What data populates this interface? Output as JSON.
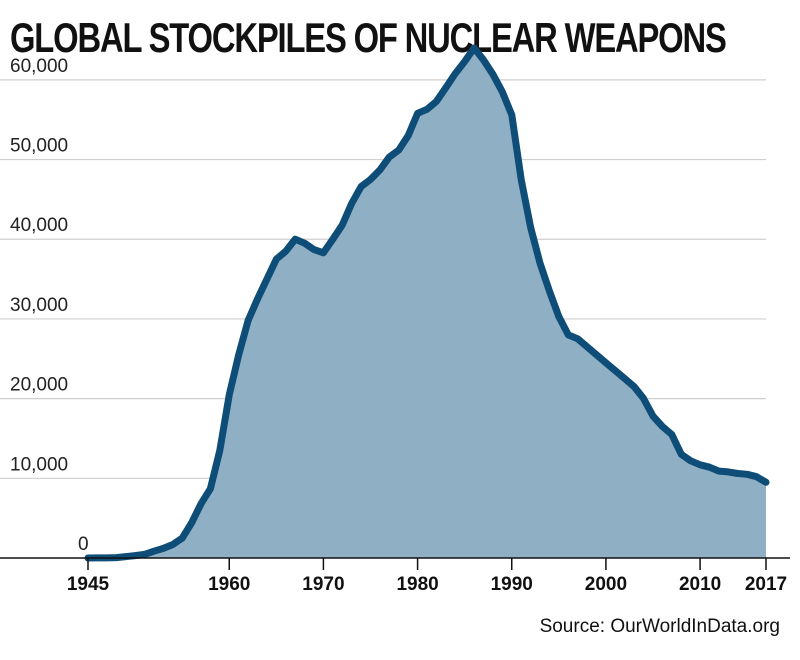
{
  "chart_data": {
    "type": "area",
    "title": "GLOBAL STOCKPILES OF NUCLEAR WEAPONS",
    "source": "Source: OurWorldInData.org",
    "xlabel": "",
    "ylabel": "",
    "xlim": [
      1945,
      2017
    ],
    "ylim": [
      0,
      65000
    ],
    "yticks": [
      0,
      10000,
      20000,
      30000,
      40000,
      50000,
      60000
    ],
    "ytick_labels": [
      "0",
      "10,000",
      "20,000",
      "30,000",
      "40,000",
      "50,000",
      "60,000"
    ],
    "xticks": [
      1945,
      1960,
      1970,
      1980,
      1990,
      2000,
      2010,
      2017
    ],
    "xtick_labels": [
      "1945",
      "1960",
      "1970",
      "1980",
      "1990",
      "2000",
      "2010",
      "2017"
    ],
    "grid": "horizontal",
    "colors": {
      "line": "#0e4d78",
      "fill": "#8fafc4",
      "grid": "#cfcfcf",
      "axis": "#111111"
    },
    "x": [
      1945,
      1946,
      1947,
      1948,
      1949,
      1950,
      1951,
      1952,
      1953,
      1954,
      1955,
      1956,
      1957,
      1958,
      1959,
      1960,
      1961,
      1962,
      1963,
      1964,
      1965,
      1966,
      1967,
      1968,
      1969,
      1970,
      1971,
      1972,
      1973,
      1974,
      1975,
      1976,
      1977,
      1978,
      1979,
      1980,
      1981,
      1982,
      1983,
      1984,
      1985,
      1986,
      1987,
      1988,
      1989,
      1990,
      1991,
      1992,
      1993,
      1994,
      1995,
      1996,
      1997,
      1998,
      1999,
      2000,
      2001,
      2002,
      2003,
      2004,
      2005,
      2006,
      2007,
      2008,
      2009,
      2010,
      2011,
      2012,
      2013,
      2014,
      2015,
      2016,
      2017
    ],
    "values": [
      2,
      9,
      13,
      50,
      170,
      300,
      450,
      850,
      1200,
      1700,
      2500,
      4400,
      6800,
      8700,
      13500,
      20500,
      25500,
      29800,
      32500,
      35000,
      37500,
      38500,
      40000,
      39500,
      38700,
      38300,
      40000,
      41800,
      44500,
      46600,
      47500,
      48700,
      50300,
      51200,
      53000,
      55800,
      56300,
      57300,
      59000,
      60800,
      62300,
      64000,
      62500,
      60700,
      58500,
      55600,
      47500,
      41500,
      37000,
      33500,
      30300,
      28000,
      27500,
      26500,
      25500,
      24500,
      23500,
      22500,
      21500,
      20000,
      17800,
      16500,
      15500,
      13000,
      12200,
      11700,
      11400,
      10900,
      10800,
      10600,
      10500,
      10200,
      9500
    ]
  }
}
